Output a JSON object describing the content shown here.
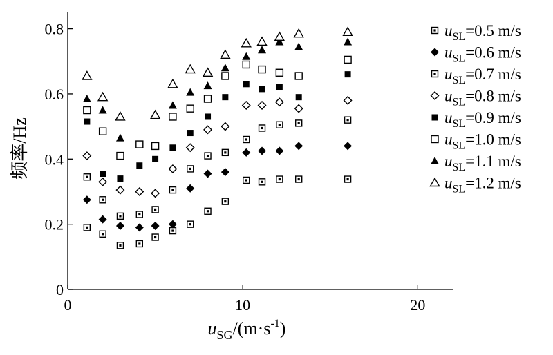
{
  "chart_data": {
    "type": "scatter",
    "xlabel": "u_SG/(m·s⁻¹)",
    "xlabel_parts": {
      "var": "u",
      "sub": "SG",
      "unit_pre": "/(m·s",
      "sup": "-1",
      "unit_post": ")"
    },
    "ylabel": "频率/Hz",
    "xlim": [
      0,
      22
    ],
    "ylim": [
      0,
      0.85
    ],
    "xticks": [
      0,
      10,
      20
    ],
    "xtick_labels": [
      "0",
      "10",
      "20"
    ],
    "yticks": [
      0,
      0.2,
      0.4,
      0.6,
      0.8
    ],
    "ytick_labels": [
      "0",
      "0.2",
      "0.4",
      "0.6",
      "0.8"
    ],
    "grid": false,
    "legend_position": "right",
    "series": [
      {
        "name": "uSL=0.5 m/s",
        "var": "u",
        "sub": "SL",
        "label": "=0.5 m/s",
        "marker": "dotted-square",
        "x": [
          1.1,
          2.0,
          3.0,
          4.1,
          5.0,
          6.0,
          7.0,
          8.0,
          9.0,
          10.2,
          11.1,
          12.1,
          13.2,
          16.0
        ],
        "y": [
          0.19,
          0.17,
          0.135,
          0.14,
          0.16,
          0.18,
          0.2,
          0.24,
          0.27,
          0.335,
          0.33,
          0.338,
          0.338,
          0.338
        ]
      },
      {
        "name": "uSL=0.6 m/s",
        "var": "u",
        "sub": "SL",
        "label": "=0.6 m/s",
        "marker": "filled-diamond",
        "x": [
          1.1,
          2.0,
          3.0,
          4.1,
          5.0,
          6.0,
          7.0,
          8.0,
          9.0,
          10.2,
          11.1,
          12.1,
          13.2,
          16.0
        ],
        "y": [
          0.275,
          0.215,
          0.195,
          0.19,
          0.195,
          0.2,
          0.31,
          0.355,
          0.36,
          0.42,
          0.425,
          0.425,
          0.44,
          0.44
        ]
      },
      {
        "name": "uSL=0.7 m/s",
        "var": "u",
        "sub": "SL",
        "label": "=0.7 m/s",
        "marker": "dotted-square",
        "x": [
          1.1,
          2.0,
          3.0,
          4.1,
          5.0,
          6.0,
          7.0,
          8.0,
          9.0,
          10.2,
          11.1,
          12.1,
          13.2,
          16.0
        ],
        "y": [
          0.345,
          0.275,
          0.225,
          0.23,
          0.245,
          0.305,
          0.37,
          0.41,
          0.42,
          0.46,
          0.495,
          0.505,
          0.51,
          0.52
        ]
      },
      {
        "name": "uSL=0.8 m/s",
        "var": "u",
        "sub": "SL",
        "label": "=0.8 m/s",
        "marker": "open-diamond",
        "x": [
          1.1,
          2.0,
          3.0,
          4.1,
          5.0,
          6.0,
          7.0,
          8.0,
          9.0,
          10.2,
          11.1,
          12.1,
          13.2,
          16.0
        ],
        "y": [
          0.41,
          0.33,
          0.305,
          0.3,
          0.295,
          0.37,
          0.435,
          0.49,
          0.5,
          0.565,
          0.565,
          0.575,
          0.555,
          0.58
        ]
      },
      {
        "name": "uSL=0.9 m/s",
        "var": "u",
        "sub": "SL",
        "label": "=0.9 m/s",
        "marker": "filled-square",
        "x": [
          1.1,
          2.0,
          3.0,
          4.1,
          5.0,
          6.0,
          7.0,
          8.0,
          9.0,
          10.2,
          11.1,
          12.1,
          13.2,
          16.0
        ],
        "y": [
          0.515,
          0.355,
          0.34,
          0.38,
          0.4,
          0.435,
          0.48,
          0.53,
          0.59,
          0.63,
          0.615,
          0.62,
          0.59,
          0.66
        ]
      },
      {
        "name": "uSL=1.0 m/s",
        "var": "u",
        "sub": "SL",
        "label": "=1.0 m/s",
        "marker": "open-square",
        "x": [
          1.1,
          2.0,
          3.0,
          4.1,
          5.0,
          6.0,
          7.0,
          8.0,
          9.0,
          10.2,
          11.1,
          12.1,
          13.2,
          16.0
        ],
        "y": [
          0.55,
          0.485,
          0.41,
          0.445,
          0.44,
          0.53,
          0.555,
          0.585,
          0.655,
          0.69,
          0.675,
          0.665,
          0.655,
          0.705
        ]
      },
      {
        "name": "uSL=1.1 m/s",
        "var": "u",
        "sub": "SL",
        "label": "=1.1 m/s",
        "marker": "filled-triangle",
        "x": [
          1.1,
          2.0,
          3.0,
          6.0,
          7.0,
          8.0,
          9.0,
          10.2,
          11.1,
          12.1,
          13.2,
          16.0
        ],
        "y": [
          0.585,
          0.55,
          0.465,
          0.565,
          0.605,
          0.625,
          0.68,
          0.715,
          0.735,
          0.76,
          0.745,
          0.76
        ]
      },
      {
        "name": "uSL=1.2 m/s",
        "var": "u",
        "sub": "SL",
        "label": "=1.2 m/s",
        "marker": "open-triangle",
        "x": [
          1.1,
          2.0,
          3.0,
          5.0,
          6.0,
          7.0,
          8.0,
          9.0,
          10.2,
          11.1,
          12.1,
          13.2,
          16.0
        ],
        "y": [
          0.655,
          0.59,
          0.53,
          0.535,
          0.63,
          0.675,
          0.665,
          0.72,
          0.755,
          0.76,
          0.775,
          0.785,
          0.79
        ]
      }
    ]
  }
}
